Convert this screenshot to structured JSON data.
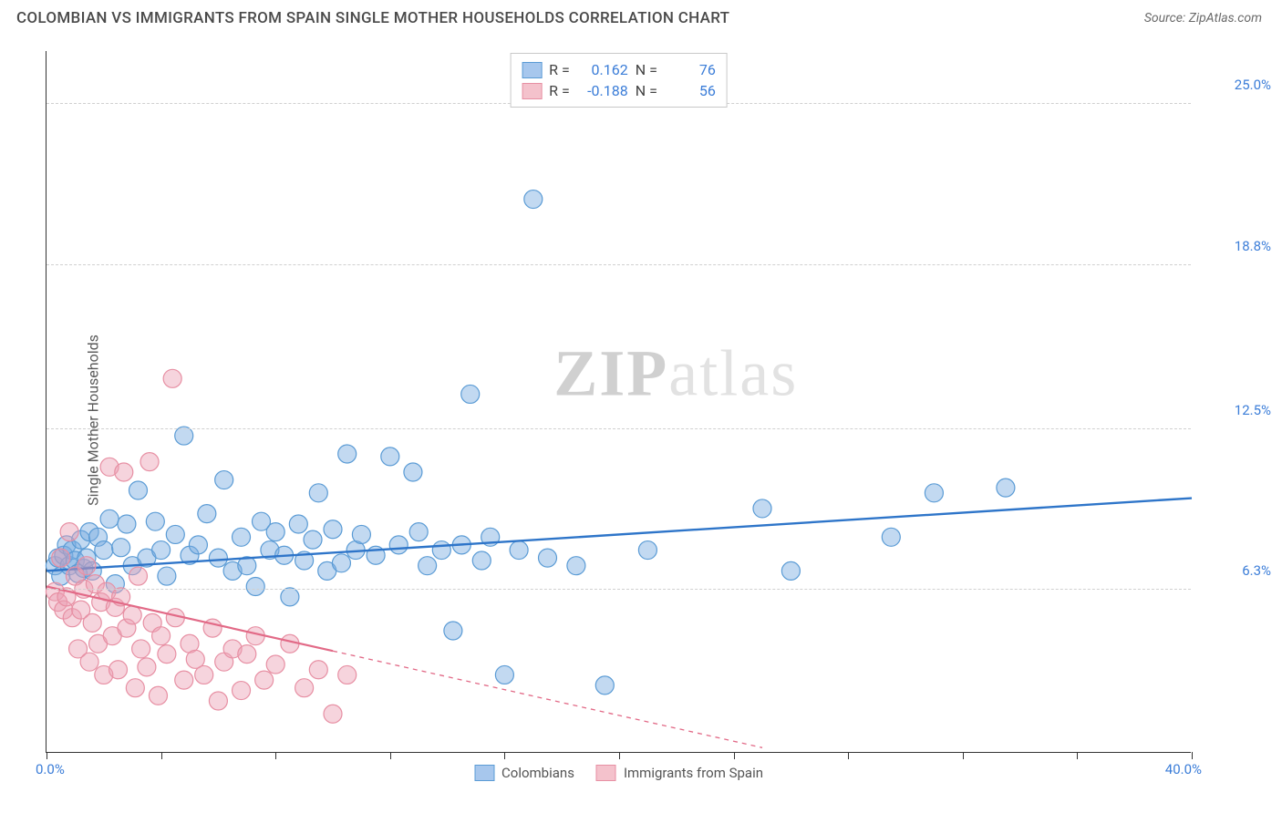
{
  "header": {
    "title": "COLOMBIAN VS IMMIGRANTS FROM SPAIN SINGLE MOTHER HOUSEHOLDS CORRELATION CHART",
    "source_prefix": "Source: ",
    "source_name": "ZipAtlas.com"
  },
  "chart": {
    "type": "scatter",
    "ylabel": "Single Mother Households",
    "xlim": [
      0,
      40
    ],
    "ylim": [
      0,
      27
    ],
    "x_ticks": [
      0,
      4,
      8,
      12,
      16,
      20,
      24,
      28,
      32,
      36,
      40
    ],
    "x_tick_labels": {
      "first": "0.0%",
      "last": "40.0%"
    },
    "y_grid": [
      6.3,
      12.5,
      18.8,
      25.0
    ],
    "y_grid_labels": [
      "6.3%",
      "12.5%",
      "18.8%",
      "25.0%"
    ],
    "background_color": "#ffffff",
    "grid_color": "#d0d0d0",
    "axis_color": "#333333",
    "label_color": "#3b7dd8",
    "watermark": "ZIPatlas",
    "legend_top": [
      {
        "swatch_fill": "#a7c7ed",
        "swatch_border": "#5a9bd5",
        "r_label": "R =",
        "r_val": "0.162",
        "n_label": "N =",
        "n_val": "76"
      },
      {
        "swatch_fill": "#f4c2cc",
        "swatch_border": "#e78fa3",
        "r_label": "R =",
        "r_val": "-0.188",
        "n_label": "N =",
        "n_val": "56"
      }
    ],
    "legend_bottom": [
      {
        "swatch_fill": "#a7c7ed",
        "swatch_border": "#5a9bd5",
        "label": "Colombians"
      },
      {
        "swatch_fill": "#f4c2cc",
        "swatch_border": "#e78fa3",
        "label": "Immigrants from Spain"
      }
    ],
    "series": [
      {
        "name": "colombians",
        "color_fill": "rgba(120,170,225,0.45)",
        "color_stroke": "#5a9bd5",
        "marker_r": 10,
        "trend": {
          "x1": 0,
          "y1": 7.0,
          "x2": 40,
          "y2": 9.8,
          "color": "#2e75c9",
          "width": 2.4,
          "solid_until_x": 40
        },
        "points": [
          [
            0.3,
            7.2
          ],
          [
            0.4,
            7.5
          ],
          [
            0.5,
            6.8
          ],
          [
            0.6,
            7.6
          ],
          [
            0.7,
            8.0
          ],
          [
            0.8,
            7.2
          ],
          [
            0.9,
            7.8
          ],
          [
            1.0,
            7.4
          ],
          [
            1.1,
            6.9
          ],
          [
            1.2,
            8.2
          ],
          [
            1.3,
            7.1
          ],
          [
            1.4,
            7.5
          ],
          [
            1.5,
            8.5
          ],
          [
            1.6,
            7.0
          ],
          [
            1.8,
            8.3
          ],
          [
            2.0,
            7.8
          ],
          [
            2.2,
            9.0
          ],
          [
            2.4,
            6.5
          ],
          [
            2.6,
            7.9
          ],
          [
            2.8,
            8.8
          ],
          [
            3.0,
            7.2
          ],
          [
            3.2,
            10.1
          ],
          [
            3.5,
            7.5
          ],
          [
            3.8,
            8.9
          ],
          [
            4.0,
            7.8
          ],
          [
            4.2,
            6.8
          ],
          [
            4.5,
            8.4
          ],
          [
            4.8,
            12.2
          ],
          [
            5.0,
            7.6
          ],
          [
            5.3,
            8.0
          ],
          [
            5.6,
            9.2
          ],
          [
            6.0,
            7.5
          ],
          [
            6.2,
            10.5
          ],
          [
            6.5,
            7.0
          ],
          [
            6.8,
            8.3
          ],
          [
            7.0,
            7.2
          ],
          [
            7.3,
            6.4
          ],
          [
            7.5,
            8.9
          ],
          [
            7.8,
            7.8
          ],
          [
            8.0,
            8.5
          ],
          [
            8.3,
            7.6
          ],
          [
            8.5,
            6.0
          ],
          [
            8.8,
            8.8
          ],
          [
            9.0,
            7.4
          ],
          [
            9.3,
            8.2
          ],
          [
            9.5,
            10.0
          ],
          [
            9.8,
            7.0
          ],
          [
            10.0,
            8.6
          ],
          [
            10.3,
            7.3
          ],
          [
            10.5,
            11.5
          ],
          [
            10.8,
            7.8
          ],
          [
            11.0,
            8.4
          ],
          [
            11.5,
            7.6
          ],
          [
            12.0,
            11.4
          ],
          [
            12.3,
            8.0
          ],
          [
            12.8,
            10.8
          ],
          [
            13.0,
            8.5
          ],
          [
            13.3,
            7.2
          ],
          [
            13.8,
            7.8
          ],
          [
            14.2,
            4.7
          ],
          [
            14.5,
            8.0
          ],
          [
            14.8,
            13.8
          ],
          [
            15.2,
            7.4
          ],
          [
            15.5,
            8.3
          ],
          [
            16.0,
            3.0
          ],
          [
            16.5,
            7.8
          ],
          [
            17.0,
            21.3
          ],
          [
            17.5,
            7.5
          ],
          [
            18.5,
            7.2
          ],
          [
            19.5,
            2.6
          ],
          [
            21.0,
            7.8
          ],
          [
            25.0,
            9.4
          ],
          [
            26.0,
            7.0
          ],
          [
            29.5,
            8.3
          ],
          [
            31.0,
            10.0
          ],
          [
            33.5,
            10.2
          ]
        ]
      },
      {
        "name": "spain",
        "color_fill": "rgba(235,160,180,0.45)",
        "color_stroke": "#e78fa3",
        "marker_r": 10,
        "trend": {
          "x1": 0,
          "y1": 6.4,
          "x2": 25,
          "y2": 0.2,
          "color": "#e26a87",
          "width": 2.2,
          "solid_until_x": 10
        },
        "points": [
          [
            0.3,
            6.2
          ],
          [
            0.4,
            5.8
          ],
          [
            0.5,
            7.5
          ],
          [
            0.6,
            5.5
          ],
          [
            0.7,
            6.0
          ],
          [
            0.8,
            8.5
          ],
          [
            0.9,
            5.2
          ],
          [
            1.0,
            6.8
          ],
          [
            1.1,
            4.0
          ],
          [
            1.2,
            5.5
          ],
          [
            1.3,
            6.3
          ],
          [
            1.4,
            7.2
          ],
          [
            1.5,
            3.5
          ],
          [
            1.6,
            5.0
          ],
          [
            1.7,
            6.5
          ],
          [
            1.8,
            4.2
          ],
          [
            1.9,
            5.8
          ],
          [
            2.0,
            3.0
          ],
          [
            2.1,
            6.2
          ],
          [
            2.2,
            11.0
          ],
          [
            2.3,
            4.5
          ],
          [
            2.4,
            5.6
          ],
          [
            2.5,
            3.2
          ],
          [
            2.6,
            6.0
          ],
          [
            2.7,
            10.8
          ],
          [
            2.8,
            4.8
          ],
          [
            3.0,
            5.3
          ],
          [
            3.1,
            2.5
          ],
          [
            3.2,
            6.8
          ],
          [
            3.3,
            4.0
          ],
          [
            3.5,
            3.3
          ],
          [
            3.6,
            11.2
          ],
          [
            3.7,
            5.0
          ],
          [
            3.9,
            2.2
          ],
          [
            4.0,
            4.5
          ],
          [
            4.2,
            3.8
          ],
          [
            4.4,
            14.4
          ],
          [
            4.5,
            5.2
          ],
          [
            4.8,
            2.8
          ],
          [
            5.0,
            4.2
          ],
          [
            5.2,
            3.6
          ],
          [
            5.5,
            3.0
          ],
          [
            5.8,
            4.8
          ],
          [
            6.0,
            2.0
          ],
          [
            6.2,
            3.5
          ],
          [
            6.5,
            4.0
          ],
          [
            6.8,
            2.4
          ],
          [
            7.0,
            3.8
          ],
          [
            7.3,
            4.5
          ],
          [
            7.6,
            2.8
          ],
          [
            8.0,
            3.4
          ],
          [
            8.5,
            4.2
          ],
          [
            9.0,
            2.5
          ],
          [
            9.5,
            3.2
          ],
          [
            10.0,
            1.5
          ],
          [
            10.5,
            3.0
          ]
        ]
      }
    ]
  }
}
